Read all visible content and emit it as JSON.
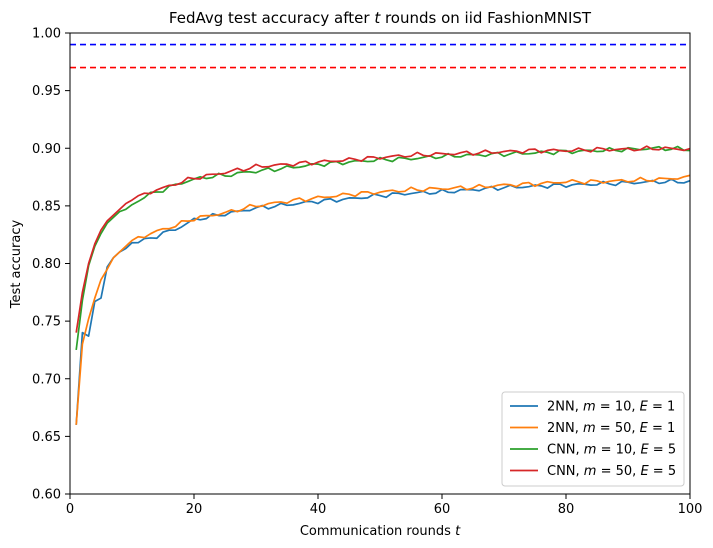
{
  "chart_data": {
    "type": "line",
    "title_parts": [
      "FedAvg test accuracy after ",
      "t",
      " rounds on iid FashionMNIST"
    ],
    "xlabel_parts": [
      "Communication rounds ",
      "t"
    ],
    "ylabel": "Test accuracy",
    "xlim": [
      0,
      100
    ],
    "ylim": [
      0.6,
      1.0
    ],
    "xticks": [
      "0",
      "20",
      "40",
      "60",
      "80",
      "100"
    ],
    "xtick_values": [
      0,
      20,
      40,
      60,
      80,
      100
    ],
    "yticks": [
      "0.60",
      "0.65",
      "0.70",
      "0.75",
      "0.80",
      "0.85",
      "0.90",
      "0.95",
      "1.00"
    ],
    "ytick_values": [
      0.6,
      0.65,
      0.7,
      0.75,
      0.8,
      0.85,
      0.9,
      0.95,
      1.0
    ],
    "grid": false,
    "legend_position": "lower-right",
    "reference_lines": [
      {
        "y": 0.99,
        "color": "#0000ff",
        "style": "dashed"
      },
      {
        "y": 0.97,
        "color": "#ff0000",
        "style": "dashed"
      }
    ],
    "series": [
      {
        "label_parts": [
          "2NN, ",
          "m",
          " = 10, ",
          "E",
          " = 1"
        ],
        "color": "#1f77b4",
        "anchors": [
          [
            1,
            0.66
          ],
          [
            2,
            0.74
          ],
          [
            3,
            0.737
          ],
          [
            4,
            0.767
          ],
          [
            5,
            0.77
          ],
          [
            6,
            0.797
          ],
          [
            7,
            0.805
          ],
          [
            8,
            0.81
          ],
          [
            9,
            0.813
          ],
          [
            10,
            0.818
          ],
          [
            12,
            0.82
          ],
          [
            14,
            0.824
          ],
          [
            16,
            0.828
          ],
          [
            18,
            0.832
          ],
          [
            20,
            0.838
          ],
          [
            22,
            0.84
          ],
          [
            24,
            0.842
          ],
          [
            26,
            0.844
          ],
          [
            28,
            0.846
          ],
          [
            30,
            0.848
          ],
          [
            35,
            0.851
          ],
          [
            40,
            0.854
          ],
          [
            45,
            0.856
          ],
          [
            50,
            0.859
          ],
          [
            55,
            0.861
          ],
          [
            60,
            0.862
          ],
          [
            65,
            0.864
          ],
          [
            70,
            0.866
          ],
          [
            75,
            0.867
          ],
          [
            80,
            0.868
          ],
          [
            85,
            0.869
          ],
          [
            90,
            0.87
          ],
          [
            95,
            0.871
          ],
          [
            100,
            0.871
          ]
        ]
      },
      {
        "label_parts": [
          "2NN, ",
          "m",
          " = 50, ",
          "E",
          " = 1"
        ],
        "color": "#ff7f0e",
        "anchors": [
          [
            1,
            0.66
          ],
          [
            2,
            0.73
          ],
          [
            3,
            0.752
          ],
          [
            4,
            0.77
          ],
          [
            5,
            0.786
          ],
          [
            6,
            0.795
          ],
          [
            7,
            0.805
          ],
          [
            8,
            0.81
          ],
          [
            9,
            0.815
          ],
          [
            10,
            0.82
          ],
          [
            12,
            0.824
          ],
          [
            14,
            0.828
          ],
          [
            16,
            0.831
          ],
          [
            18,
            0.835
          ],
          [
            20,
            0.839
          ],
          [
            22,
            0.841
          ],
          [
            24,
            0.843
          ],
          [
            26,
            0.845
          ],
          [
            28,
            0.848
          ],
          [
            30,
            0.85
          ],
          [
            35,
            0.854
          ],
          [
            40,
            0.857
          ],
          [
            45,
            0.86
          ],
          [
            50,
            0.862
          ],
          [
            55,
            0.864
          ],
          [
            60,
            0.865
          ],
          [
            65,
            0.866
          ],
          [
            70,
            0.868
          ],
          [
            75,
            0.869
          ],
          [
            80,
            0.871
          ],
          [
            85,
            0.871
          ],
          [
            90,
            0.872
          ],
          [
            95,
            0.873
          ],
          [
            100,
            0.875
          ]
        ]
      },
      {
        "label_parts": [
          "CNN, ",
          "m",
          " = 10, ",
          "E",
          " = 5"
        ],
        "color": "#2ca02c",
        "anchors": [
          [
            1,
            0.725
          ],
          [
            2,
            0.768
          ],
          [
            3,
            0.798
          ],
          [
            4,
            0.815
          ],
          [
            5,
            0.826
          ],
          [
            6,
            0.835
          ],
          [
            7,
            0.84
          ],
          [
            8,
            0.845
          ],
          [
            9,
            0.847
          ],
          [
            10,
            0.851
          ],
          [
            12,
            0.858
          ],
          [
            14,
            0.862
          ],
          [
            16,
            0.866
          ],
          [
            18,
            0.87
          ],
          [
            20,
            0.873
          ],
          [
            22,
            0.875
          ],
          [
            24,
            0.876
          ],
          [
            26,
            0.877
          ],
          [
            28,
            0.879
          ],
          [
            30,
            0.88
          ],
          [
            35,
            0.883
          ],
          [
            40,
            0.886
          ],
          [
            45,
            0.888
          ],
          [
            50,
            0.89
          ],
          [
            55,
            0.891
          ],
          [
            60,
            0.893
          ],
          [
            65,
            0.894
          ],
          [
            70,
            0.895
          ],
          [
            75,
            0.896
          ],
          [
            80,
            0.897
          ],
          [
            85,
            0.898
          ],
          [
            90,
            0.899
          ],
          [
            95,
            0.9
          ],
          [
            100,
            0.899
          ]
        ]
      },
      {
        "label_parts": [
          "CNN, ",
          "m",
          " = 50, ",
          "E",
          " = 5"
        ],
        "color": "#d62728",
        "anchors": [
          [
            1,
            0.74
          ],
          [
            2,
            0.775
          ],
          [
            3,
            0.8
          ],
          [
            4,
            0.817
          ],
          [
            5,
            0.829
          ],
          [
            6,
            0.837
          ],
          [
            7,
            0.842
          ],
          [
            8,
            0.847
          ],
          [
            9,
            0.852
          ],
          [
            10,
            0.855
          ],
          [
            12,
            0.86
          ],
          [
            14,
            0.864
          ],
          [
            16,
            0.867
          ],
          [
            18,
            0.871
          ],
          [
            20,
            0.874
          ],
          [
            22,
            0.876
          ],
          [
            24,
            0.878
          ],
          [
            26,
            0.88
          ],
          [
            28,
            0.882
          ],
          [
            30,
            0.884
          ],
          [
            35,
            0.886
          ],
          [
            40,
            0.888
          ],
          [
            45,
            0.89
          ],
          [
            50,
            0.892
          ],
          [
            55,
            0.894
          ],
          [
            60,
            0.895
          ],
          [
            65,
            0.896
          ],
          [
            70,
            0.897
          ],
          [
            75,
            0.898
          ],
          [
            80,
            0.898
          ],
          [
            85,
            0.899
          ],
          [
            90,
            0.899
          ],
          [
            95,
            0.9
          ],
          [
            100,
            0.899
          ]
        ]
      }
    ]
  }
}
